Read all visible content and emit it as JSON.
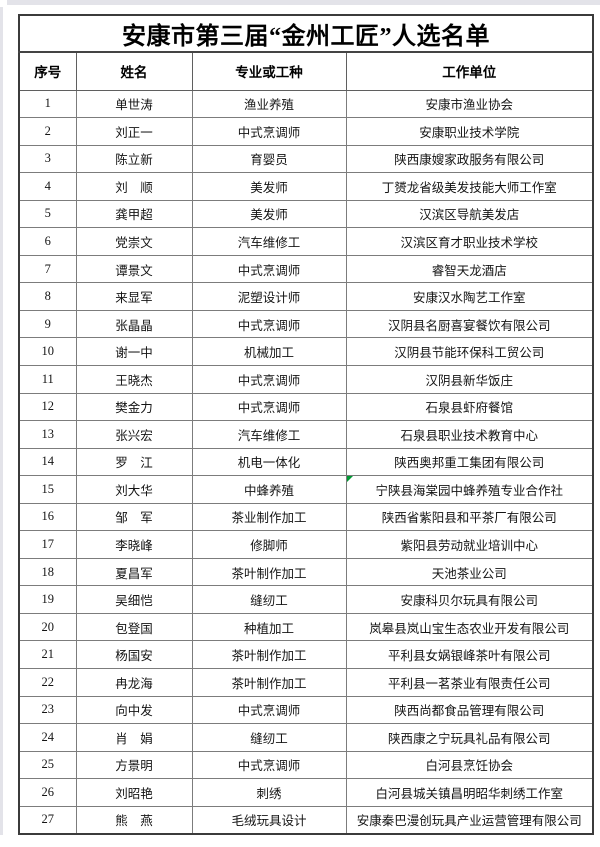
{
  "page": {
    "title": "安康市第三届“金州工匠”人选名单"
  },
  "table": {
    "headers": {
      "no": "序号",
      "name": "姓名",
      "trade": "专业或工种",
      "unit": "工作单位"
    },
    "rows": [
      {
        "no": "1",
        "name": "单世涛",
        "trade": "渔业养殖",
        "unit": "安康市渔业协会"
      },
      {
        "no": "2",
        "name": "刘正一",
        "trade": "中式烹调师",
        "unit": "安康职业技术学院"
      },
      {
        "no": "3",
        "name": "陈立新",
        "trade": "育婴员",
        "unit": "陕西康嫂家政服务有限公司"
      },
      {
        "no": "4",
        "name": "刘　顺",
        "trade": "美发师",
        "unit": "丁赟龙省级美发技能大师工作室"
      },
      {
        "no": "5",
        "name": "龚甲超",
        "trade": "美发师",
        "unit": "汉滨区导航美发店"
      },
      {
        "no": "6",
        "name": "党崇文",
        "trade": "汽车维修工",
        "unit": "汉滨区育才职业技术学校"
      },
      {
        "no": "7",
        "name": "谭景文",
        "trade": "中式烹调师",
        "unit": "睿智天龙酒店"
      },
      {
        "no": "8",
        "name": "来显军",
        "trade": "泥塑设计师",
        "unit": "安康汉水陶艺工作室"
      },
      {
        "no": "9",
        "name": "张晶晶",
        "trade": "中式烹调师",
        "unit": "汉阴县名厨喜宴餐饮有限公司"
      },
      {
        "no": "10",
        "name": "谢一中",
        "trade": "机械加工",
        "unit": "汉阴县节能环保科工贸公司"
      },
      {
        "no": "11",
        "name": "王晓杰",
        "trade": "中式烹调师",
        "unit": "汉阴县新华饭庄"
      },
      {
        "no": "12",
        "name": "樊金力",
        "trade": "中式烹调师",
        "unit": "石泉县虾府餐馆"
      },
      {
        "no": "13",
        "name": "张兴宏",
        "trade": "汽车维修工",
        "unit": "石泉县职业技术教育中心"
      },
      {
        "no": "14",
        "name": "罗　江",
        "trade": "机电一体化",
        "unit": "陕西奥邦重工集团有限公司"
      },
      {
        "no": "15",
        "name": "刘大华",
        "trade": "中蜂养殖",
        "unit": "宁陕县海棠园中蜂养殖专业合作社"
      },
      {
        "no": "16",
        "name": "邹　军",
        "trade": "茶业制作加工",
        "unit": "陕西省紫阳县和平茶厂有限公司"
      },
      {
        "no": "17",
        "name": "李晓峰",
        "trade": "修脚师",
        "unit": "紫阳县劳动就业培训中心"
      },
      {
        "no": "18",
        "name": "夏昌军",
        "trade": "茶叶制作加工",
        "unit": "天池茶业公司"
      },
      {
        "no": "19",
        "name": "吴细恺",
        "trade": "缝纫工",
        "unit": "安康科贝尔玩具有限公司"
      },
      {
        "no": "20",
        "name": "包登国",
        "trade": "种植加工",
        "unit": "岚皋县岚山宝生态农业开发有限公司"
      },
      {
        "no": "21",
        "name": "杨国安",
        "trade": "茶叶制作加工",
        "unit": "平利县女娲银峰茶叶有限公司"
      },
      {
        "no": "22",
        "name": "冉龙海",
        "trade": "茶叶制作加工",
        "unit": "平利县一茗茶业有限责任公司"
      },
      {
        "no": "23",
        "name": "向中发",
        "trade": "中式烹调师",
        "unit": "陕西尚都食品管理有限公司"
      },
      {
        "no": "24",
        "name": "肖　娟",
        "trade": "缝纫工",
        "unit": "陕西康之宁玩具礼品有限公司"
      },
      {
        "no": "25",
        "name": "方景明",
        "trade": "中式烹调师",
        "unit": "白河县烹饪协会"
      },
      {
        "no": "26",
        "name": "刘昭艳",
        "trade": "刺绣",
        "unit": "白河县城关镇昌明昭华刺绣工作室"
      },
      {
        "no": "27",
        "name": "熊　燕",
        "trade": "毛绒玩具设计",
        "unit": "安康秦巴漫创玩具产业运营管理有限公司"
      }
    ]
  },
  "annotations": {
    "comment_marker": {
      "row_no": "15",
      "column": "unit",
      "color": "#019934"
    }
  },
  "colors": {
    "page_background": "#ffffff",
    "edge_gray": "#e3e3e9",
    "outer_border": "#3b3b3b",
    "inner_border": "#7c7c7c",
    "title_text": "#000000",
    "body_text": "#141414"
  }
}
